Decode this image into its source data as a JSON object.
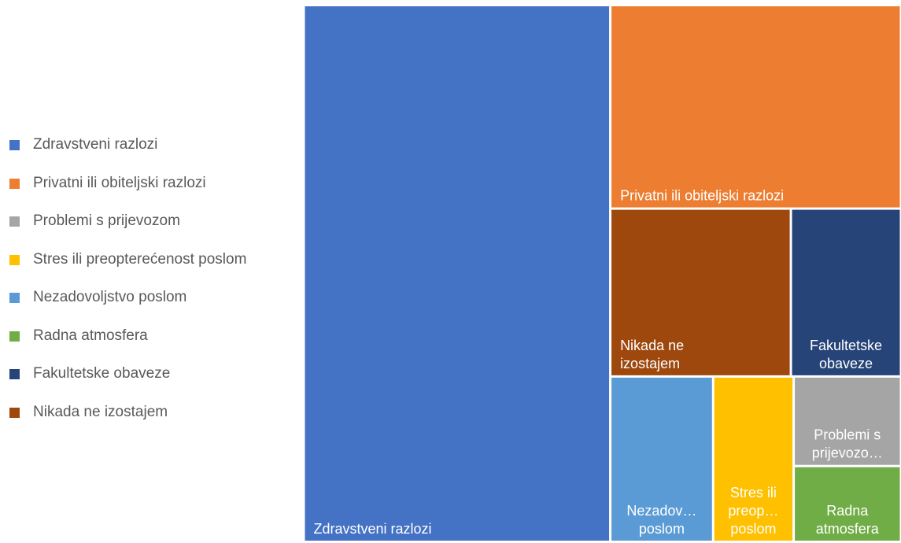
{
  "chart_data": {
    "type": "treemap",
    "title": "",
    "categories": [
      {
        "name": "Zdravstveni razlozi",
        "value": 44.5,
        "color": "#4472C4",
        "tile_lines": [
          "Zdravstveni razlozi"
        ]
      },
      {
        "name": "Privatni ili obiteljski razlozi",
        "value": 16.0,
        "color": "#ED7D31",
        "tile_lines": [
          "Privatni ili obiteljski razlozi"
        ]
      },
      {
        "name": "Nikada ne izostajem",
        "value": 8.2,
        "color": "#9E480E",
        "tile_lines": [
          "Nikada ne",
          "izostajem"
        ]
      },
      {
        "name": "Fakultetske obaveze",
        "value": 5.0,
        "color": "#264478",
        "tile_lines": [
          "Fakultetske",
          "obaveze"
        ]
      },
      {
        "name": "Nezadovoljstvo poslom",
        "value": 4.6,
        "color": "#5B9BD5",
        "tile_lines": [
          "Nezadov…",
          "poslom"
        ]
      },
      {
        "name": "Stres ili preopterećenost poslom",
        "value": 3.6,
        "color": "#FFC000",
        "tile_lines": [
          "Stres ili",
          "preop…",
          "poslom"
        ]
      },
      {
        "name": "Problemi s prijevozom",
        "value": 2.6,
        "color": "#A5A5A5",
        "tile_lines": [
          "Problemi s",
          "prijevozo…"
        ]
      },
      {
        "name": "Radna atmosfera",
        "value": 2.2,
        "color": "#70AD47",
        "tile_lines": [
          "Radna",
          "atmosfera"
        ]
      }
    ],
    "legend": {
      "position": "left",
      "items": [
        {
          "label": "Zdravstveni razlozi",
          "color": "#4472C4"
        },
        {
          "label": "Privatni ili obiteljski razlozi",
          "color": "#ED7D31"
        },
        {
          "label": "Problemi s prijevozom",
          "color": "#A5A5A5"
        },
        {
          "label": "Stres ili preopterećenost poslom",
          "color": "#FFC000"
        },
        {
          "label": "Nezadovoljstvo poslom",
          "color": "#5B9BD5"
        },
        {
          "label": "Radna atmosfera",
          "color": "#70AD47"
        },
        {
          "label": "Fakultetske obaveze",
          "color": "#264478"
        },
        {
          "label": "Nikada ne izostajem",
          "color": "#9E480E"
        }
      ]
    }
  }
}
